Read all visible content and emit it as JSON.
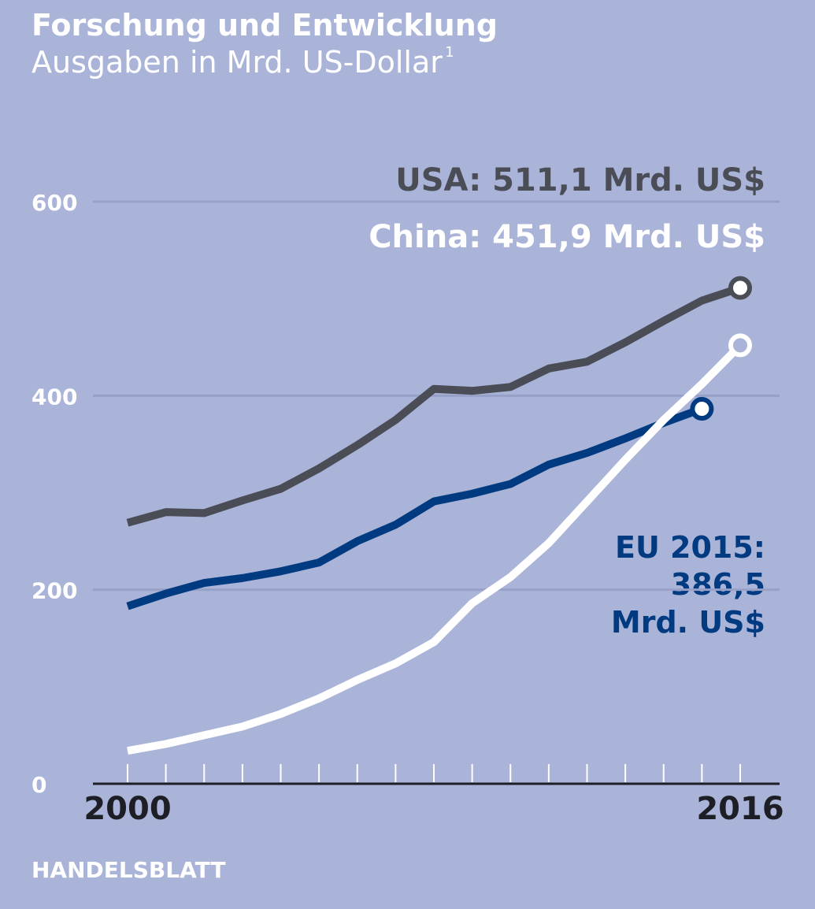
{
  "chart_data": {
    "type": "line",
    "title": "Forschung und Entwicklung",
    "subtitle": "Ausgaben in Mrd. US-Dollar",
    "subtitle_note": "1",
    "x": [
      2000,
      2001,
      2002,
      2003,
      2004,
      2005,
      2006,
      2007,
      2008,
      2009,
      2010,
      2011,
      2012,
      2013,
      2014,
      2015,
      2016
    ],
    "xlim": [
      2000,
      2016
    ],
    "xticks": [
      2000,
      2016
    ],
    "ylim": [
      0,
      600
    ],
    "yticks": [
      0,
      200,
      400,
      600
    ],
    "grid": true,
    "series": [
      {
        "name": "USA",
        "color": "#4a4c56",
        "values": [
          269,
          280,
          279,
          292,
          304,
          325,
          349,
          375,
          407,
          405,
          409,
          428,
          435,
          455,
          477,
          498,
          511.1
        ]
      },
      {
        "name": "EU",
        "color": "#003a80",
        "values": [
          183,
          196,
          207,
          212,
          219,
          228,
          250,
          267,
          291,
          299,
          309,
          329,
          341,
          356,
          372,
          386.5,
          null
        ]
      },
      {
        "name": "China",
        "color": "#ffffff",
        "values": [
          34,
          41,
          50,
          59,
          72,
          88,
          107,
          124,
          146,
          186,
          213,
          248,
          291,
          334,
          375,
          412,
          451.9
        ]
      }
    ],
    "annotations": [
      "USA: 511,1 Mrd. US$",
      "China: 451,9 Mrd. US$",
      "EU 2015:",
      "386,5",
      "Mrd. US$"
    ],
    "source": "HANDELSBLATT"
  }
}
